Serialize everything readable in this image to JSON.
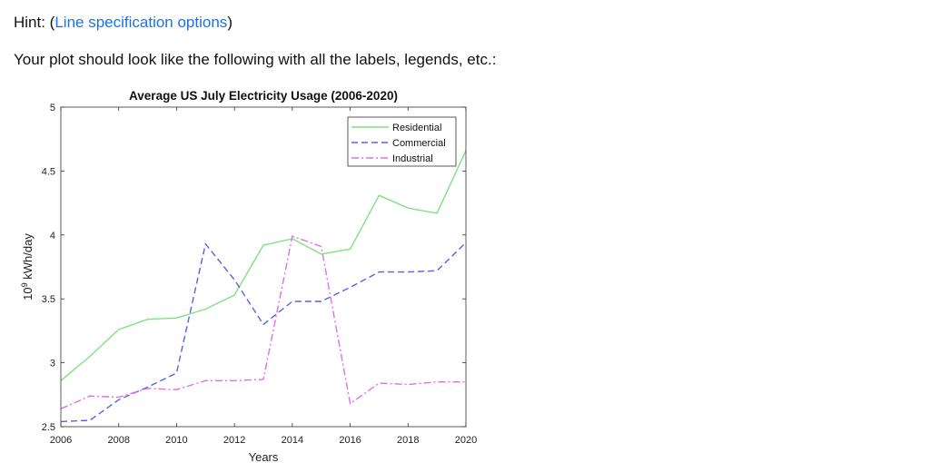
{
  "hint": {
    "prefix": "Hint: (",
    "link_text": "Line specification options",
    "suffix": ")"
  },
  "instruction": "Your plot should look like the following with all the labels, legends, etc.:",
  "chart_data": {
    "type": "line",
    "title": "Average US July Electricity Usage (2006-2020)",
    "xlabel": "Years",
    "ylabel_base": "10",
    "ylabel_exp": "9",
    "ylabel_rest": " kWh/day",
    "xlim": [
      2006,
      2020
    ],
    "ylim": [
      2.5,
      5
    ],
    "xticks": [
      2006,
      2008,
      2010,
      2012,
      2014,
      2016,
      2018,
      2020
    ],
    "yticks": [
      2.5,
      3,
      3.5,
      4,
      4.5,
      5
    ],
    "xtick_labels": [
      "2006",
      "2008",
      "2010",
      "2012",
      "2014",
      "2016",
      "2018",
      "2020"
    ],
    "ytick_labels": [
      "2.5",
      "3",
      "3.5",
      "4",
      "4.5",
      "5"
    ],
    "x": [
      2006,
      2007,
      2008,
      2009,
      2010,
      2011,
      2012,
      2013,
      2014,
      2015,
      2016,
      2017,
      2018,
      2019,
      2020
    ],
    "legend_position": "top-right",
    "series": [
      {
        "name": "Residential",
        "color": "#7fe27f",
        "style": "solid",
        "values": [
          2.86,
          3.05,
          3.26,
          3.34,
          3.35,
          3.42,
          3.53,
          3.92,
          3.97,
          3.85,
          3.89,
          4.31,
          4.21,
          4.17,
          4.66
        ]
      },
      {
        "name": "Commercial",
        "color": "#5562e6",
        "style": "dashed",
        "values": [
          2.54,
          2.55,
          2.71,
          2.81,
          2.92,
          3.93,
          3.65,
          3.3,
          3.48,
          3.48,
          3.59,
          3.71,
          3.71,
          3.72,
          3.94
        ]
      },
      {
        "name": "Industrial",
        "color": "#e36de6",
        "style": "dashdot",
        "values": [
          2.64,
          2.74,
          2.73,
          2.8,
          2.79,
          2.86,
          2.86,
          2.87,
          3.99,
          3.91,
          2.68,
          2.84,
          2.83,
          2.85,
          2.85
        ]
      }
    ]
  }
}
